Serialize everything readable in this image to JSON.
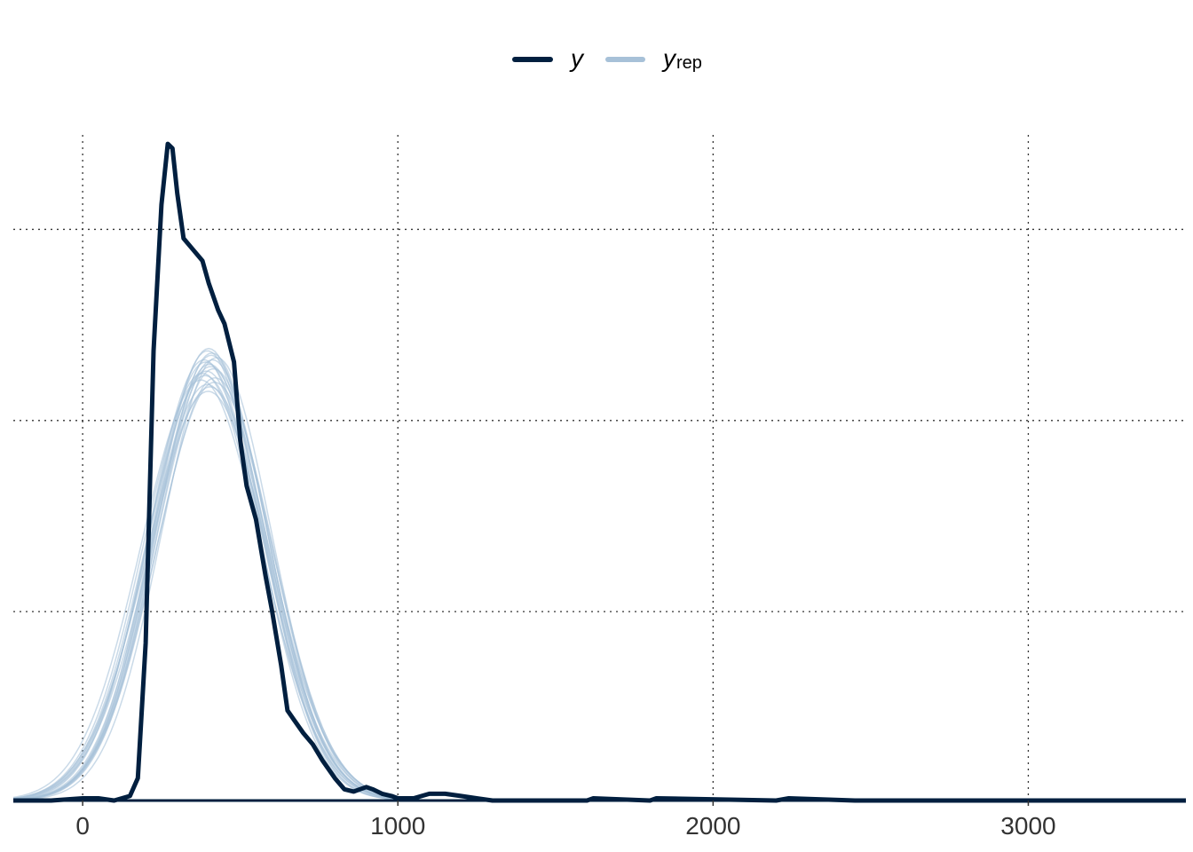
{
  "chart_data": {
    "type": "line",
    "title": "",
    "xlabel": "",
    "ylabel": "",
    "xlim": [
      -220,
      3500
    ],
    "ylim": [
      0,
      0.00296
    ],
    "x_ticks": [
      0,
      1000,
      2000,
      3000
    ],
    "x_tick_labels": [
      "0",
      "1000",
      "2000",
      "3000"
    ],
    "y_gridlines": [
      0.00084,
      0.00169,
      0.00254
    ],
    "grid": true,
    "legend": {
      "position": "top",
      "entries": [
        {
          "main": "y",
          "sub": "",
          "color": "#011f3f"
        },
        {
          "main": "y",
          "sub": "rep",
          "color": "#a7c1d8"
        }
      ]
    },
    "colors": {
      "y": "#011f3f",
      "yrep": "#a7c1d8",
      "grid": "#333333"
    },
    "series": [
      {
        "name": "y",
        "x": [
          -220,
          -100,
          0,
          50,
          100,
          150,
          175,
          200,
          225,
          250,
          270,
          285,
          300,
          320,
          350,
          380,
          400,
          430,
          450,
          480,
          500,
          520,
          550,
          580,
          600,
          630,
          650,
          670,
          700,
          730,
          760,
          800,
          830,
          860,
          880,
          900,
          920,
          950,
          980,
          1000,
          1050,
          1100,
          1150,
          1200,
          1250,
          1300,
          1400,
          1600,
          1620,
          1800,
          1820,
          2200,
          2240,
          2450,
          3500
        ],
        "y": [
          0,
          0,
          1e-05,
          1e-05,
          0,
          2e-05,
          0.0001,
          0.0007,
          0.002,
          0.00265,
          0.00292,
          0.0029,
          0.0027,
          0.0025,
          0.00245,
          0.0024,
          0.0023,
          0.00218,
          0.00212,
          0.00195,
          0.0016,
          0.0014,
          0.00125,
          0.001,
          0.00085,
          0.0006,
          0.0004,
          0.00036,
          0.0003,
          0.00025,
          0.00018,
          0.0001,
          5e-05,
          4e-05,
          5e-05,
          6e-05,
          5e-05,
          3e-05,
          2e-05,
          1e-05,
          1e-05,
          3e-05,
          3e-05,
          2e-05,
          1e-05,
          0,
          0,
          0,
          1e-05,
          0,
          1e-05,
          0,
          1e-05,
          0,
          0
        ]
      },
      {
        "name": "y_rep",
        "peak_x": 390,
        "peak_y": 0.00195,
        "sd": 180
      },
      {
        "name": "y_rep",
        "peak_x": 410,
        "peak_y": 0.00199,
        "sd": 175
      },
      {
        "name": "y_rep",
        "peak_x": 380,
        "peak_y": 0.0019,
        "sd": 185
      },
      {
        "name": "y_rep",
        "peak_x": 400,
        "peak_y": 0.00201,
        "sd": 172
      },
      {
        "name": "y_rep",
        "peak_x": 420,
        "peak_y": 0.00188,
        "sd": 182
      },
      {
        "name": "y_rep",
        "peak_x": 395,
        "peak_y": 0.00185,
        "sd": 188
      },
      {
        "name": "y_rep",
        "peak_x": 405,
        "peak_y": 0.00193,
        "sd": 178
      },
      {
        "name": "y_rep",
        "peak_x": 385,
        "peak_y": 0.00196,
        "sd": 176
      },
      {
        "name": "y_rep",
        "peak_x": 415,
        "peak_y": 0.00192,
        "sd": 181
      },
      {
        "name": "y_rep",
        "peak_x": 375,
        "peak_y": 0.00187,
        "sd": 190
      },
      {
        "name": "y_rep",
        "peak_x": 425,
        "peak_y": 0.00197,
        "sd": 174
      },
      {
        "name": "y_rep",
        "peak_x": 398,
        "peak_y": 0.00182,
        "sd": 192
      },
      {
        "name": "y_rep",
        "peak_x": 408,
        "peak_y": 0.00198,
        "sd": 177
      },
      {
        "name": "y_rep",
        "peak_x": 392,
        "peak_y": 0.00191,
        "sd": 184
      },
      {
        "name": "y_rep",
        "peak_x": 402,
        "peak_y": 0.00194,
        "sd": 179
      },
      {
        "name": "y_rep",
        "peak_x": 388,
        "peak_y": 0.00189,
        "sd": 186
      },
      {
        "name": "y_rep",
        "peak_x": 412,
        "peak_y": 0.00196,
        "sd": 175
      },
      {
        "name": "y_rep",
        "peak_x": 418,
        "peak_y": 0.00186,
        "sd": 183
      },
      {
        "name": "y_rep",
        "peak_x": 396,
        "peak_y": 0.002,
        "sd": 173
      },
      {
        "name": "y_rep",
        "peak_x": 404,
        "peak_y": 0.00184,
        "sd": 189
      }
    ]
  }
}
